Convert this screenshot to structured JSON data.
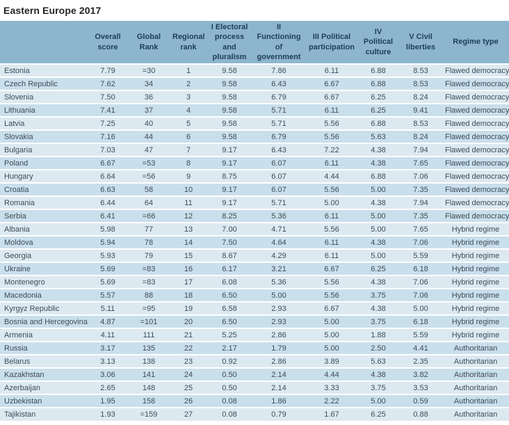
{
  "title": "Eastern Europe 2017",
  "colors": {
    "header_bg": "#8db6ce",
    "header_text": "#1e3d5a",
    "row_odd": "#dde9f1",
    "row_even": "#c9dfeb",
    "row_text": "#3c4c58",
    "title_text": "#232323"
  },
  "chart_data": {
    "type": "table",
    "title": "Eastern Europe 2017",
    "columns": [
      "",
      "Overall score",
      "Global Rank",
      "Regional rank",
      "I Electoral process and pluralism",
      "II Functioning of government",
      "III Political participation",
      "IV Political culture",
      "V Civil liberties",
      "Regime type"
    ],
    "rows": [
      {
        "country": "Estonia",
        "overall_score": "7.79",
        "global_rank": "=30",
        "regional_rank": "1",
        "electoral_process": "9.58",
        "functioning_of_government": "7.86",
        "political_participation": "6.11",
        "political_culture": "6.88",
        "civil_liberties": "8.53",
        "regime_type": "Flawed democracy"
      },
      {
        "country": "Czech Republic",
        "overall_score": "7.62",
        "global_rank": "34",
        "regional_rank": "2",
        "electoral_process": "9.58",
        "functioning_of_government": "6.43",
        "political_participation": "6.67",
        "political_culture": "6.88",
        "civil_liberties": "8.53",
        "regime_type": "Flawed democracy"
      },
      {
        "country": "Slovenia",
        "overall_score": "7.50",
        "global_rank": "36",
        "regional_rank": "3",
        "electoral_process": "9.58",
        "functioning_of_government": "6.79",
        "political_participation": "6.67",
        "political_culture": "6.25",
        "civil_liberties": "8.24",
        "regime_type": "Flawed democracy"
      },
      {
        "country": "Lithuania",
        "overall_score": "7.41",
        "global_rank": "37",
        "regional_rank": "4",
        "electoral_process": "9.58",
        "functioning_of_government": "5.71",
        "political_participation": "6.11",
        "political_culture": "6.25",
        "civil_liberties": "9.41",
        "regime_type": "Flawed democracy"
      },
      {
        "country": "Latvia",
        "overall_score": "7.25",
        "global_rank": "40",
        "regional_rank": "5",
        "electoral_process": "9.58",
        "functioning_of_government": "5.71",
        "political_participation": "5.56",
        "political_culture": "6.88",
        "civil_liberties": "8.53",
        "regime_type": "Flawed democracy"
      },
      {
        "country": "Slovakia",
        "overall_score": "7.16",
        "global_rank": "44",
        "regional_rank": "6",
        "electoral_process": "9.58",
        "functioning_of_government": "6.79",
        "political_participation": "5.56",
        "political_culture": "5.63",
        "civil_liberties": "8.24",
        "regime_type": "Flawed democracy"
      },
      {
        "country": "Bulgaria",
        "overall_score": "7.03",
        "global_rank": "47",
        "regional_rank": "7",
        "electoral_process": "9.17",
        "functioning_of_government": "6.43",
        "political_participation": "7.22",
        "political_culture": "4.38",
        "civil_liberties": "7.94",
        "regime_type": "Flawed democracy"
      },
      {
        "country": "Poland",
        "overall_score": "6.67",
        "global_rank": "=53",
        "regional_rank": "8",
        "electoral_process": "9.17",
        "functioning_of_government": "6.07",
        "political_participation": "6.11",
        "political_culture": "4.38",
        "civil_liberties": "7.65",
        "regime_type": "Flawed democracy"
      },
      {
        "country": "Hungary",
        "overall_score": "6.64",
        "global_rank": "=56",
        "regional_rank": "9",
        "electoral_process": "8.75",
        "functioning_of_government": "6.07",
        "political_participation": "4.44",
        "political_culture": "6.88",
        "civil_liberties": "7.06",
        "regime_type": "Flawed democracy"
      },
      {
        "country": "Croatia",
        "overall_score": "6.63",
        "global_rank": "58",
        "regional_rank": "10",
        "electoral_process": "9.17",
        "functioning_of_government": "6.07",
        "political_participation": "5.56",
        "political_culture": "5.00",
        "civil_liberties": "7.35",
        "regime_type": "Flawed democracy"
      },
      {
        "country": "Romania",
        "overall_score": "6.44",
        "global_rank": "64",
        "regional_rank": "11",
        "electoral_process": "9.17",
        "functioning_of_government": "5.71",
        "political_participation": "5.00",
        "political_culture": "4.38",
        "civil_liberties": "7.94",
        "regime_type": "Flawed democracy"
      },
      {
        "country": "Serbia",
        "overall_score": "6.41",
        "global_rank": "=66",
        "regional_rank": "12",
        "electoral_process": "8.25",
        "functioning_of_government": "5.36",
        "political_participation": "6.11",
        "political_culture": "5.00",
        "civil_liberties": "7.35",
        "regime_type": "Flawed democracy"
      },
      {
        "country": "Albania",
        "overall_score": "5.98",
        "global_rank": "77",
        "regional_rank": "13",
        "electoral_process": "7.00",
        "functioning_of_government": "4.71",
        "political_participation": "5.56",
        "political_culture": "5.00",
        "civil_liberties": "7.65",
        "regime_type": "Hybrid regime"
      },
      {
        "country": "Moldova",
        "overall_score": "5.94",
        "global_rank": "78",
        "regional_rank": "14",
        "electoral_process": "7.50",
        "functioning_of_government": "4.64",
        "political_participation": "6.11",
        "political_culture": "4.38",
        "civil_liberties": "7.06",
        "regime_type": "Hybrid regime"
      },
      {
        "country": "Georgia",
        "overall_score": "5.93",
        "global_rank": "79",
        "regional_rank": "15",
        "electoral_process": "8.67",
        "functioning_of_government": "4.29",
        "political_participation": "6.11",
        "political_culture": "5.00",
        "civil_liberties": "5.59",
        "regime_type": "Hybrid regime"
      },
      {
        "country": "Ukraine",
        "overall_score": "5.69",
        "global_rank": "=83",
        "regional_rank": "16",
        "electoral_process": "6.17",
        "functioning_of_government": "3.21",
        "political_participation": "6.67",
        "political_culture": "6.25",
        "civil_liberties": "6.18",
        "regime_type": "Hybrid regime"
      },
      {
        "country": "Montenegro",
        "overall_score": "5.69",
        "global_rank": "=83",
        "regional_rank": "17",
        "electoral_process": "6.08",
        "functioning_of_government": "5.36",
        "political_participation": "5.56",
        "political_culture": "4.38",
        "civil_liberties": "7.06",
        "regime_type": "Hybrid regime"
      },
      {
        "country": "Macedonia",
        "overall_score": "5.57",
        "global_rank": "88",
        "regional_rank": "18",
        "electoral_process": "6.50",
        "functioning_of_government": "5.00",
        "political_participation": "5.56",
        "political_culture": "3.75",
        "civil_liberties": "7.06",
        "regime_type": "Hybrid regime"
      },
      {
        "country": "Kyrgyz Republic",
        "overall_score": "5.11",
        "global_rank": "=95",
        "regional_rank": "19",
        "electoral_process": "6.58",
        "functioning_of_government": "2.93",
        "political_participation": "6.67",
        "political_culture": "4.38",
        "civil_liberties": "5.00",
        "regime_type": "Hybrid regime"
      },
      {
        "country": "Bosnia and Hercegovina",
        "overall_score": "4.87",
        "global_rank": "=101",
        "regional_rank": "20",
        "electoral_process": "6.50",
        "functioning_of_government": "2.93",
        "political_participation": "5.00",
        "political_culture": "3.75",
        "civil_liberties": "6.18",
        "regime_type": "Hybrid regime"
      },
      {
        "country": "Armenia",
        "overall_score": "4.11",
        "global_rank": "111",
        "regional_rank": "21",
        "electoral_process": "5.25",
        "functioning_of_government": "2.86",
        "political_participation": "5.00",
        "political_culture": "1.88",
        "civil_liberties": "5.59",
        "regime_type": "Hybrid regime"
      },
      {
        "country": "Russia",
        "overall_score": "3.17",
        "global_rank": "135",
        "regional_rank": "22",
        "electoral_process": "2.17",
        "functioning_of_government": "1.79",
        "political_participation": "5.00",
        "political_culture": "2.50",
        "civil_liberties": "4.41",
        "regime_type": "Authoritarian"
      },
      {
        "country": "Belarus",
        "overall_score": "3.13",
        "global_rank": "138",
        "regional_rank": "23",
        "electoral_process": "0.92",
        "functioning_of_government": "2.86",
        "political_participation": "3.89",
        "political_culture": "5.63",
        "civil_liberties": "2.35",
        "regime_type": "Authoritarian"
      },
      {
        "country": "Kazakhstan",
        "overall_score": "3.06",
        "global_rank": "141",
        "regional_rank": "24",
        "electoral_process": "0.50",
        "functioning_of_government": "2.14",
        "political_participation": "4.44",
        "political_culture": "4.38",
        "civil_liberties": "3.82",
        "regime_type": "Authoritarian"
      },
      {
        "country": "Azerbaijan",
        "overall_score": "2.65",
        "global_rank": "148",
        "regional_rank": "25",
        "electoral_process": "0.50",
        "functioning_of_government": "2.14",
        "political_participation": "3.33",
        "political_culture": "3.75",
        "civil_liberties": "3.53",
        "regime_type": "Authoritarian"
      },
      {
        "country": "Uzbekistan",
        "overall_score": "1.95",
        "global_rank": "158",
        "regional_rank": "26",
        "electoral_process": "0.08",
        "functioning_of_government": "1.86",
        "political_participation": "2.22",
        "political_culture": "5.00",
        "civil_liberties": "0.59",
        "regime_type": "Authoritarian"
      },
      {
        "country": "Tajikistan",
        "overall_score": "1.93",
        "global_rank": "=159",
        "regional_rank": "27",
        "electoral_process": "0.08",
        "functioning_of_government": "0.79",
        "political_participation": "1.67",
        "political_culture": "6.25",
        "civil_liberties": "0.88",
        "regime_type": "Authoritarian"
      }
    ]
  }
}
